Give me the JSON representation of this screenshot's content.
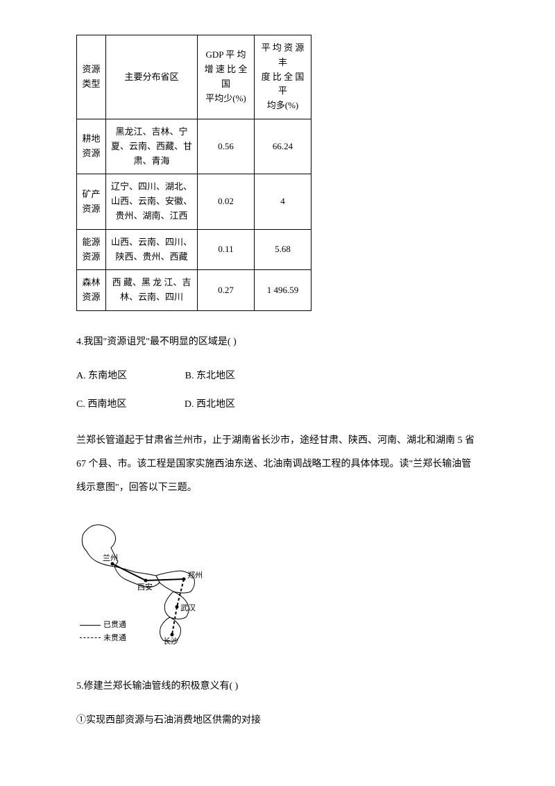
{
  "table": {
    "headers": {
      "col1": "资源\n类型",
      "col2": "主要分布省区",
      "col3": "GDP 平 均\n增 速 比 全 国\n平均少(%)",
      "col4": "平 均 资 源 丰\n度 比 全 国 平\n均多(%)"
    },
    "rows": [
      {
        "type": "耕地\n资源",
        "provinces": "黑龙江、吉林、宁\n夏、云南、西藏、甘\n肃、青海",
        "gdp": "0.56",
        "abundance": "66.24"
      },
      {
        "type": "矿产\n资源",
        "provinces": "辽宁、四川、湖北、\n山西、云南、安徽、\n贵州、湖南、江西",
        "gdp": "0.02",
        "abundance": "4"
      },
      {
        "type": "能源\n资源",
        "provinces": "山西、云南、四川、\n陕西、贵州、西藏",
        "gdp": "0.11",
        "abundance": "5.68"
      },
      {
        "type": "森林\n资源",
        "provinces": "西 藏、黑 龙 江、吉\n林、云南、四川",
        "gdp": "0.27",
        "abundance": "1 496.59"
      }
    ]
  },
  "question4": {
    "text": "4.我国\"资源诅咒\"最不明显的区域是(    )",
    "options": {
      "a": "A.   东南地区",
      "b": "B.   东北地区",
      "c": "C.   西南地区",
      "d": "D.   西北地区"
    }
  },
  "passage": "兰郑长管道起于甘肃省兰州市，止于湖南省长沙市，途经甘肃、陕西、河南、湖北和湖南 5 省 67 个县、市。该工程是国家实施西油东送、北油南调战略工程的具体体现。读\"兰郑长输油管线示意图\"，回答以下三题。",
  "map": {
    "cities": {
      "lanzhou": "兰州",
      "xian": "西安",
      "zhengzhou": "郑州",
      "wuhan": "武汉",
      "changsha": "长沙"
    },
    "legend": {
      "solid": "已贯通",
      "dashed": "未贯通"
    }
  },
  "question5": {
    "text": "5.修建兰郑长输油管线的积极意义有(    )",
    "item1": "①实现西部资源与石油消费地区供需的对接"
  }
}
